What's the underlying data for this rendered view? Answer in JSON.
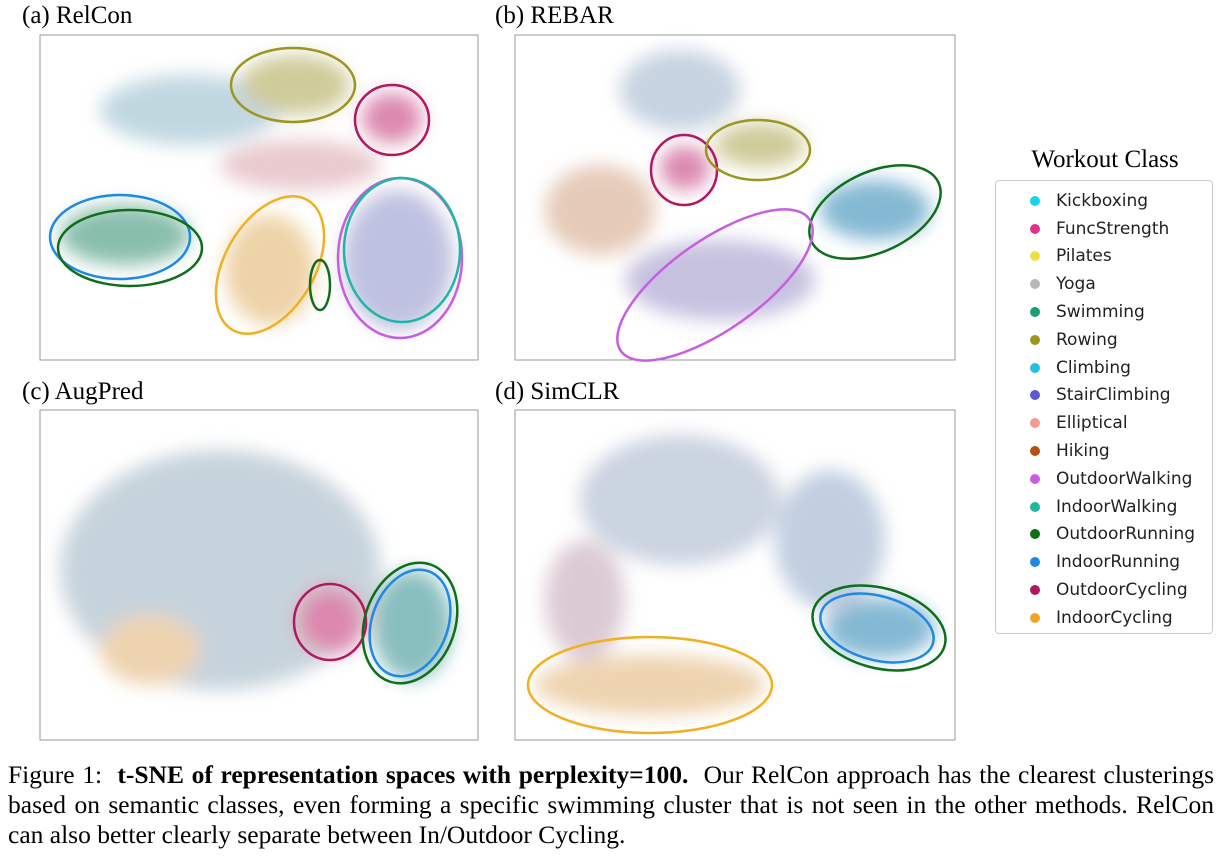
{
  "panels": [
    {
      "label": "(a) RelCon"
    },
    {
      "label": "(b) REBAR"
    },
    {
      "label": "(c) AugPred"
    },
    {
      "label": "(d) SimCLR"
    }
  ],
  "legend": {
    "title": "Workout Class",
    "items": [
      {
        "name": "Kickboxing",
        "color": "#17d4e8"
      },
      {
        "name": "FuncStrength",
        "color": "#e0348c"
      },
      {
        "name": "Pilates",
        "color": "#ede040"
      },
      {
        "name": "Yoga",
        "color": "#b8b8b8"
      },
      {
        "name": "Swimming",
        "color": "#1e9e6e"
      },
      {
        "name": "Rowing",
        "color": "#9a9620"
      },
      {
        "name": "Climbing",
        "color": "#23bfe0"
      },
      {
        "name": "StairClimbing",
        "color": "#5b5bd0"
      },
      {
        "name": "Elliptical",
        "color": "#f59a90"
      },
      {
        "name": "Hiking",
        "color": "#b5520f"
      },
      {
        "name": "OutdoorWalking",
        "color": "#c75ee0"
      },
      {
        "name": "IndoorWalking",
        "color": "#21b5a5"
      },
      {
        "name": "OutdoorRunning",
        "color": "#0e6e1a"
      },
      {
        "name": "IndoorRunning",
        "color": "#1e88e5"
      },
      {
        "name": "OutdoorCycling",
        "color": "#b01860"
      },
      {
        "name": "IndoorCycling",
        "color": "#f0a428"
      }
    ]
  },
  "caption": {
    "lead": "Figure 1:",
    "bold": "t-SNE of representation spaces with perplexity=100.",
    "text": "Our RelCon approach has the clearest clusterings based on semantic classes, even forming a specific swimming cluster that is not seen in the other methods. RelCon can also better clearly separate between In/Outdoor Cycling."
  }
}
